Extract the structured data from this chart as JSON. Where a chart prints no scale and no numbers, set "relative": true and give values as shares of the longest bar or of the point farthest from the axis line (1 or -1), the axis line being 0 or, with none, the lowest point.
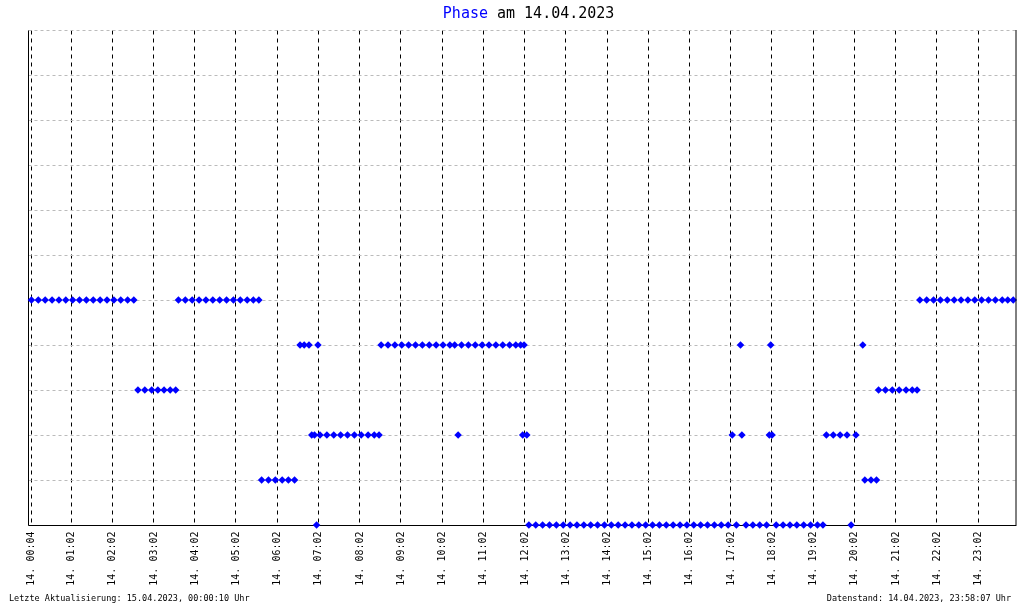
{
  "chart_data": {
    "type": "scatter",
    "title": "am 14.04.2023",
    "legend": "top",
    "relative": true,
    "tick_labels": "x",
    "grid": true,
    "marker": "diamond",
    "xlim": [
      "2023-04-14T00:00",
      "2023-04-14T23:58"
    ],
    "xticks": [
      {
        "value": "2023-04-14T00:04",
        "label": "14. 00:04"
      },
      {
        "value": "2023-04-14T01:02",
        "label": "14. 01:02"
      },
      {
        "value": "2023-04-14T02:02",
        "label": "14. 02:02"
      },
      {
        "value": "2023-04-14T03:02",
        "label": "14. 03:02"
      },
      {
        "value": "2023-04-14T04:02",
        "label": "14. 04:02"
      },
      {
        "value": "2023-04-14T05:02",
        "label": "14. 05:02"
      },
      {
        "value": "2023-04-14T06:02",
        "label": "14. 06:02"
      },
      {
        "value": "2023-04-14T07:02",
        "label": "14. 07:02"
      },
      {
        "value": "2023-04-14T08:02",
        "label": "14. 08:02"
      },
      {
        "value": "2023-04-14T09:02",
        "label": "14. 09:02"
      },
      {
        "value": "2023-04-14T10:02",
        "label": "14. 10:02"
      },
      {
        "value": "2023-04-14T11:02",
        "label": "14. 11:02"
      },
      {
        "value": "2023-04-14T12:02",
        "label": "14. 12:02"
      },
      {
        "value": "2023-04-14T13:02",
        "label": "14. 13:02"
      },
      {
        "value": "2023-04-14T14:02",
        "label": "14. 14:02"
      },
      {
        "value": "2023-04-14T15:02",
        "label": "14. 15:02"
      },
      {
        "value": "2023-04-14T16:02",
        "label": "14. 16:02"
      },
      {
        "value": "2023-04-14T17:02",
        "label": "14. 17:02"
      },
      {
        "value": "2023-04-14T18:02",
        "label": "14. 18:02"
      },
      {
        "value": "2023-04-14T19:02",
        "label": "14. 19:02"
      },
      {
        "value": "2023-04-14T20:02",
        "label": "14. 20:02"
      },
      {
        "value": "2023-04-14T21:02",
        "label": "14. 21:02"
      },
      {
        "value": "2023-04-14T22:02",
        "label": "14. 22:02"
      },
      {
        "value": "2023-04-14T23:02",
        "label": "14. 23:02"
      }
    ],
    "series": [
      {
        "name": "Phase",
        "color": "#0000ff",
        "x": [
          "2023-04-14T00:05",
          "2023-04-14T00:15",
          "2023-04-14T00:25",
          "2023-04-14T00:35",
          "2023-04-14T00:45",
          "2023-04-14T00:55",
          "2023-04-14T01:05",
          "2023-04-14T01:15",
          "2023-04-14T01:25",
          "2023-04-14T01:35",
          "2023-04-14T01:45",
          "2023-04-14T01:55",
          "2023-04-14T02:05",
          "2023-04-14T02:15",
          "2023-04-14T02:25",
          "2023-04-14T02:34",
          "2023-04-14T02:40",
          "2023-04-14T02:50",
          "2023-04-14T03:00",
          "2023-04-14T03:09",
          "2023-04-14T03:18",
          "2023-04-14T03:27",
          "2023-04-14T03:35",
          "2023-04-14T03:39",
          "2023-04-14T03:49",
          "2023-04-14T03:59",
          "2023-04-14T04:09",
          "2023-04-14T04:19",
          "2023-04-14T04:29",
          "2023-04-14T04:39",
          "2023-04-14T04:49",
          "2023-04-14T04:59",
          "2023-04-14T05:09",
          "2023-04-14T05:19",
          "2023-04-14T05:28",
          "2023-04-14T05:36",
          "2023-04-14T05:40",
          "2023-04-14T05:50",
          "2023-04-14T06:00",
          "2023-04-14T06:10",
          "2023-04-14T06:19",
          "2023-04-14T06:28",
          "2023-04-14T06:36",
          "2023-04-14T06:42",
          "2023-04-14T06:49",
          "2023-04-14T06:53",
          "2023-04-14T06:57",
          "2023-04-14T07:00",
          "2023-04-14T07:02",
          "2023-04-14T07:05",
          "2023-04-14T07:15",
          "2023-04-14T07:25",
          "2023-04-14T07:35",
          "2023-04-14T07:45",
          "2023-04-14T07:55",
          "2023-04-14T08:05",
          "2023-04-14T08:15",
          "2023-04-14T08:24",
          "2023-04-14T08:31",
          "2023-04-14T08:34",
          "2023-04-14T08:44",
          "2023-04-14T08:54",
          "2023-04-14T09:04",
          "2023-04-14T09:14",
          "2023-04-14T09:24",
          "2023-04-14T09:34",
          "2023-04-14T09:44",
          "2023-04-14T09:54",
          "2023-04-14T10:04",
          "2023-04-14T10:14",
          "2023-04-14T10:21",
          "2023-04-14T10:26",
          "2023-04-14T10:31",
          "2023-04-14T10:41",
          "2023-04-14T10:51",
          "2023-04-14T11:01",
          "2023-04-14T11:11",
          "2023-04-14T11:21",
          "2023-04-14T11:31",
          "2023-04-14T11:41",
          "2023-04-14T11:50",
          "2023-04-14T11:57",
          "2023-04-14T12:00",
          "2023-04-14T12:02",
          "2023-04-14T12:06",
          "2023-04-14T12:09",
          "2023-04-14T12:19",
          "2023-04-14T12:29",
          "2023-04-14T12:39",
          "2023-04-14T12:49",
          "2023-04-14T12:59",
          "2023-04-14T13:09",
          "2023-04-14T13:19",
          "2023-04-14T13:29",
          "2023-04-14T13:39",
          "2023-04-14T13:49",
          "2023-04-14T13:59",
          "2023-04-14T14:09",
          "2023-04-14T14:19",
          "2023-04-14T14:29",
          "2023-04-14T14:39",
          "2023-04-14T14:49",
          "2023-04-14T14:59",
          "2023-04-14T15:09",
          "2023-04-14T15:19",
          "2023-04-14T15:29",
          "2023-04-14T15:39",
          "2023-04-14T15:49",
          "2023-04-14T15:59",
          "2023-04-14T16:09",
          "2023-04-14T16:19",
          "2023-04-14T16:29",
          "2023-04-14T16:39",
          "2023-04-14T16:49",
          "2023-04-14T16:59",
          "2023-04-14T17:05",
          "2023-04-14T17:11",
          "2023-04-14T17:17",
          "2023-04-14T17:19",
          "2023-04-14T17:25",
          "2023-04-14T17:35",
          "2023-04-14T17:45",
          "2023-04-14T17:55",
          "2023-04-14T17:59",
          "2023-04-14T18:01",
          "2023-04-14T18:03",
          "2023-04-14T18:09",
          "2023-04-14T18:19",
          "2023-04-14T18:29",
          "2023-04-14T18:39",
          "2023-04-14T18:49",
          "2023-04-14T18:59",
          "2023-04-14T19:09",
          "2023-04-14T19:17",
          "2023-04-14T19:22",
          "2023-04-14T19:32",
          "2023-04-14T19:42",
          "2023-04-14T19:52",
          "2023-04-14T19:58",
          "2023-04-14T20:05",
          "2023-04-14T20:15",
          "2023-04-14T20:18",
          "2023-04-14T20:27",
          "2023-04-14T20:35",
          "2023-04-14T20:38",
          "2023-04-14T20:48",
          "2023-04-14T20:58",
          "2023-04-14T21:08",
          "2023-04-14T21:18",
          "2023-04-14T21:27",
          "2023-04-14T21:34",
          "2023-04-14T21:38",
          "2023-04-14T21:48",
          "2023-04-14T21:58",
          "2023-04-14T22:08",
          "2023-04-14T22:18",
          "2023-04-14T22:28",
          "2023-04-14T22:38",
          "2023-04-14T22:48",
          "2023-04-14T22:58",
          "2023-04-14T23:08",
          "2023-04-14T23:18",
          "2023-04-14T23:28",
          "2023-04-14T23:38",
          "2023-04-14T23:46",
          "2023-04-14T23:54"
        ],
        "values": [
          1,
          1,
          1,
          1,
          1,
          1,
          1,
          1,
          1,
          1,
          1,
          1,
          1,
          1,
          1,
          1,
          0.6,
          0.6,
          0.6,
          0.6,
          0.6,
          0.6,
          0.6,
          1,
          1,
          1,
          1,
          1,
          1,
          1,
          1,
          1,
          1,
          1,
          1,
          1,
          0.2,
          0.2,
          0.2,
          0.2,
          0.2,
          0.2,
          0.8,
          0.8,
          0.8,
          0.4,
          0.4,
          0,
          0.8,
          0.4,
          0.4,
          0.4,
          0.4,
          0.4,
          0.4,
          0.4,
          0.4,
          0.4,
          0.4,
          0.8,
          0.8,
          0.8,
          0.8,
          0.8,
          0.8,
          0.8,
          0.8,
          0.8,
          0.8,
          0.8,
          0.8,
          0.4,
          0.8,
          0.8,
          0.8,
          0.8,
          0.8,
          0.8,
          0.8,
          0.8,
          0.8,
          0.8,
          0.4,
          0.8,
          0.4,
          0,
          0,
          0,
          0,
          0,
          0,
          0,
          0,
          0,
          0,
          0,
          0,
          0,
          0,
          0,
          0,
          0,
          0,
          0,
          0,
          0,
          0,
          0,
          0,
          0,
          0,
          0,
          0,
          0,
          0,
          0.4,
          0,
          0.8,
          0.4,
          0,
          0,
          0,
          0,
          0.4,
          0.8,
          0.4,
          0,
          0,
          0,
          0,
          0,
          0,
          0,
          0,
          0.4,
          0.4,
          0.4,
          0.4,
          0,
          0.4,
          0.8,
          0.2,
          0.2,
          0.2,
          0.6,
          0.6,
          0.6,
          0.6,
          0.6,
          0.6,
          0.6,
          1,
          1,
          1,
          1,
          1,
          1,
          1,
          1,
          1,
          1,
          1,
          1,
          1,
          1,
          1
        ]
      }
    ],
    "annotations": [
      "Letzte Aktualisierung: 15.04.2023, 00:00:10 Uhr",
      "Datenstand: 14.04.2023, 23:58:07 Uhr"
    ]
  }
}
